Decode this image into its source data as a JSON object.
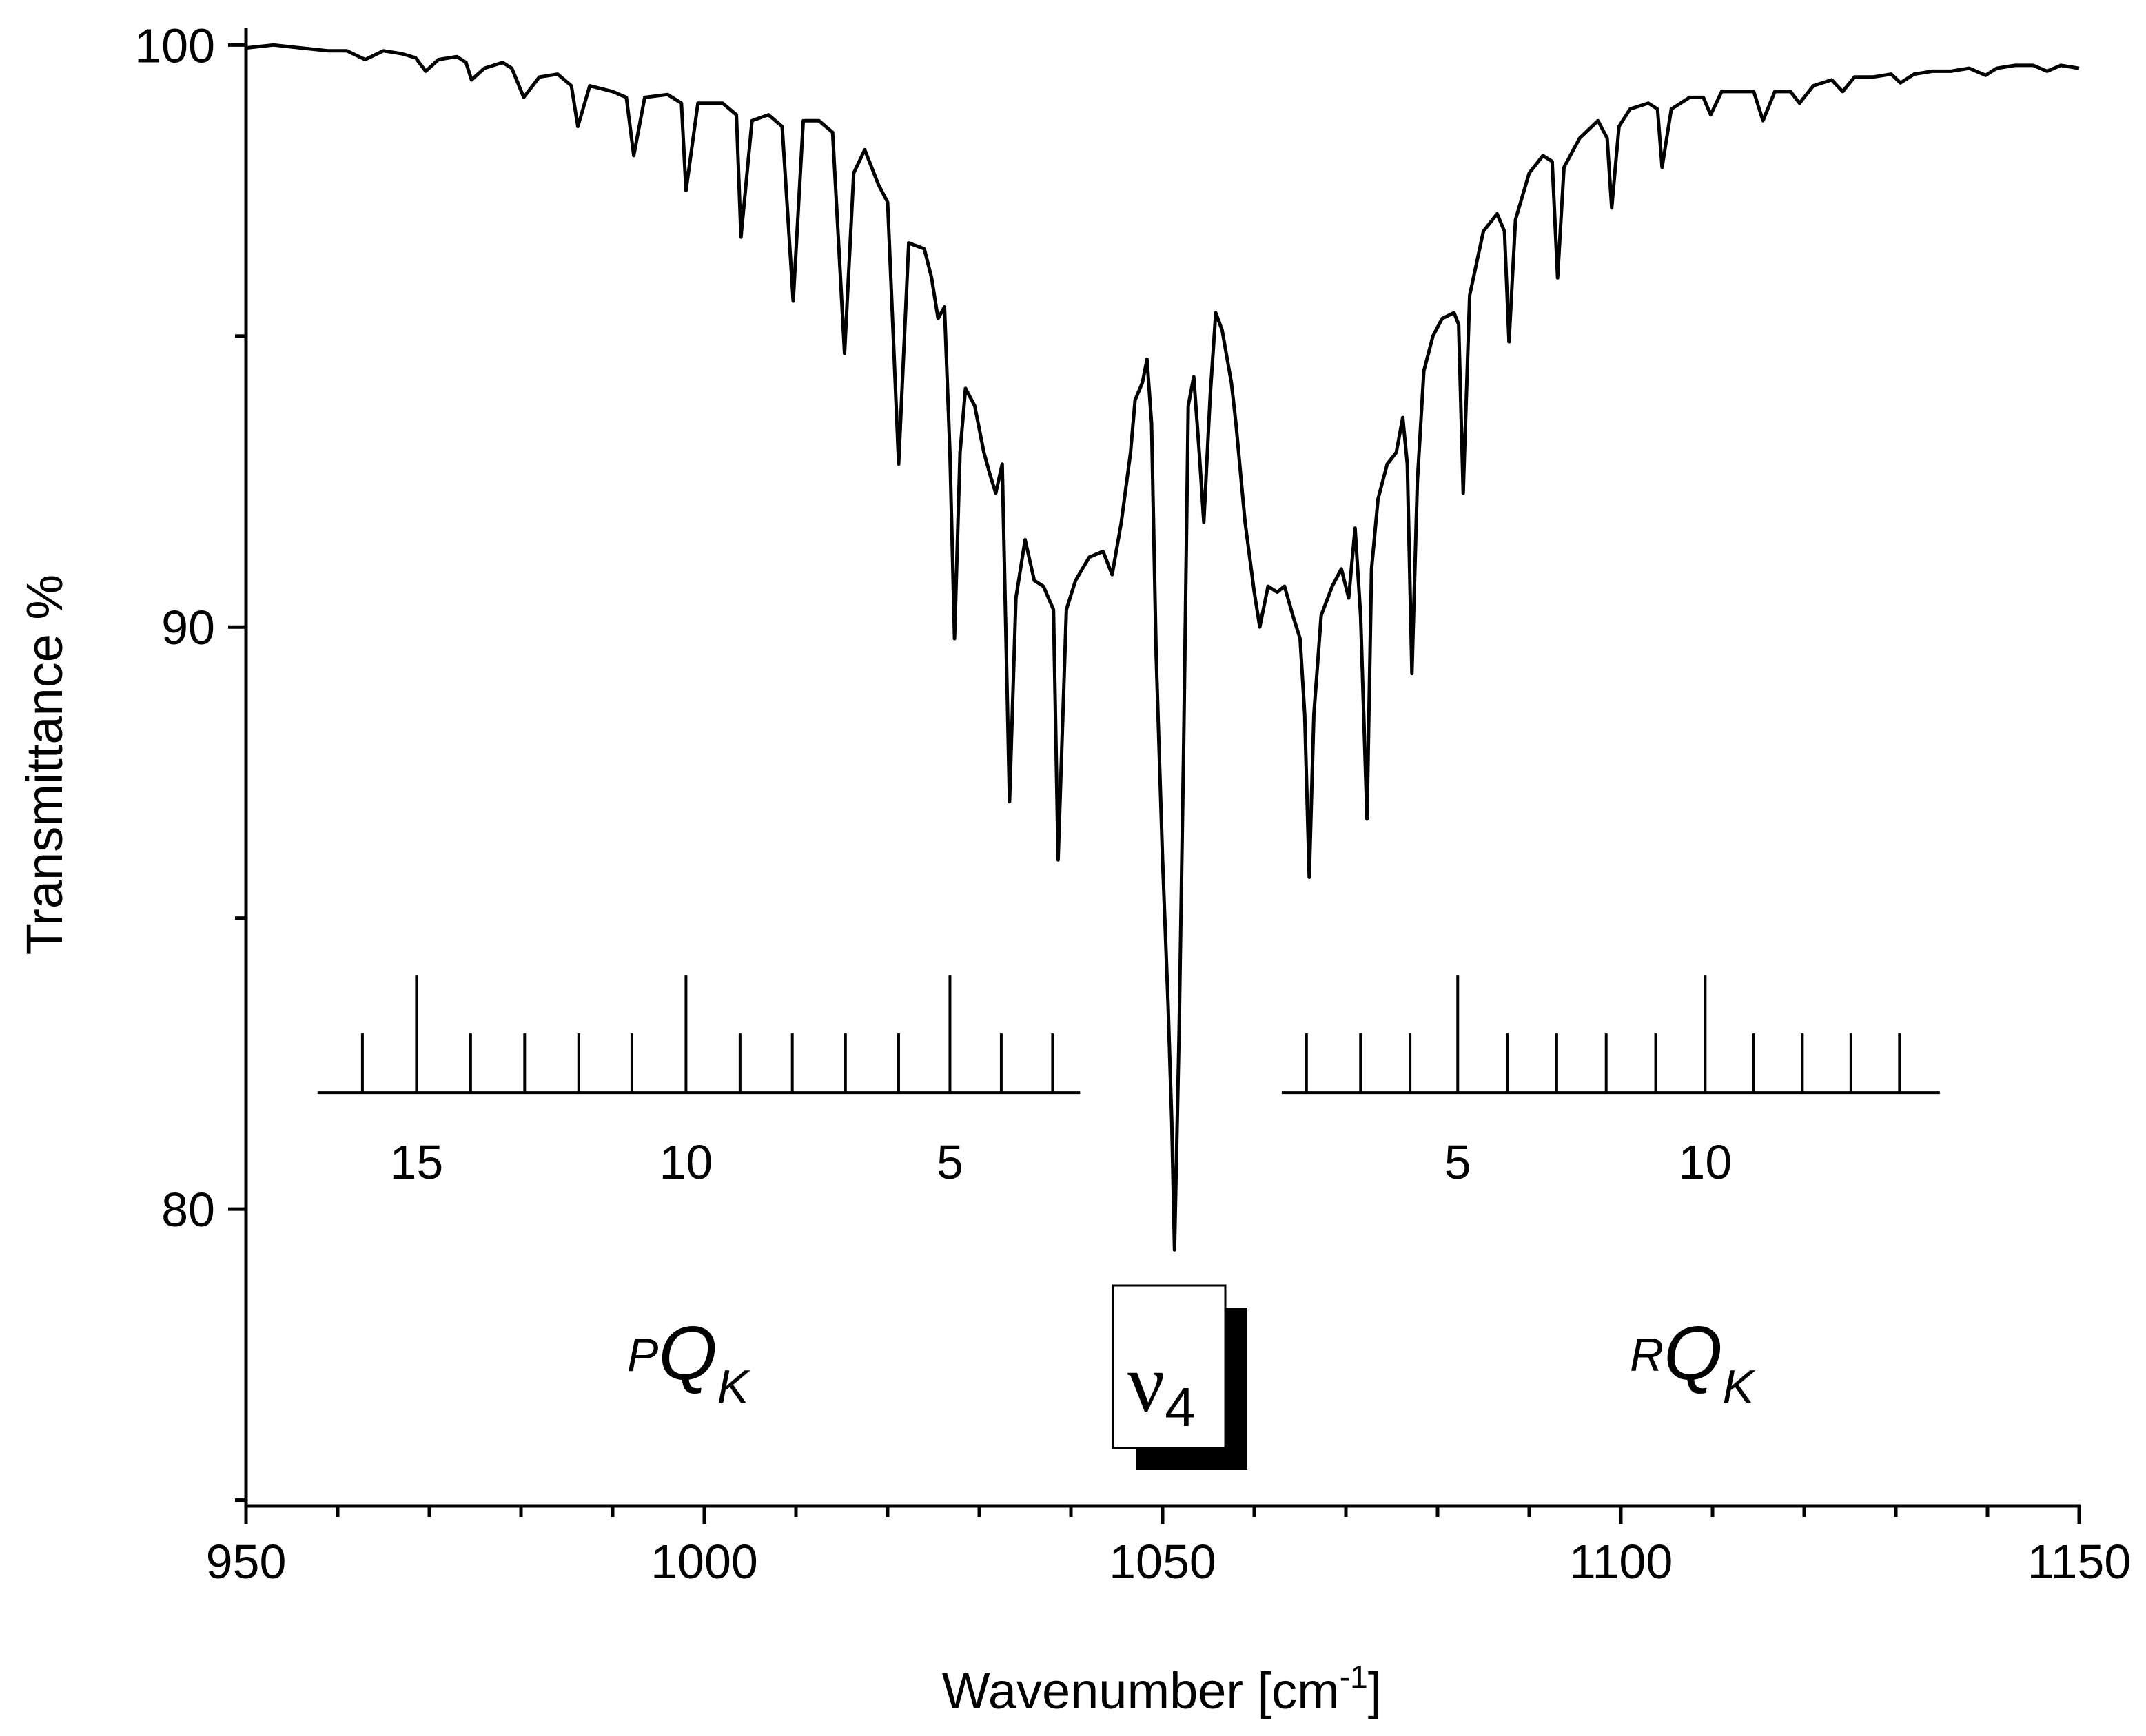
{
  "chart_data": {
    "type": "line",
    "xlabel_main": "Wavenumber [cm",
    "xlabel_sup": "-1",
    "xlabel_end": "]",
    "ylabel": "Transmittance %",
    "xlim": [
      950,
      1150
    ],
    "ylim": [
      74.9,
      100.3
    ],
    "x_ticks": [
      "950",
      "1000",
      "1050",
      "1100",
      "1150"
    ],
    "y_ticks": [
      "80",
      "90",
      "100"
    ],
    "series": [
      {
        "name": "Transmittance",
        "points": [
          [
            950,
            99.95
          ],
          [
            953,
            100.0
          ],
          [
            956,
            99.95
          ],
          [
            959,
            99.9
          ],
          [
            961,
            99.9
          ],
          [
            963,
            99.75
          ],
          [
            965,
            99.9
          ],
          [
            967,
            99.85
          ],
          [
            968.5,
            99.78
          ],
          [
            969.6,
            99.55
          ],
          [
            971,
            99.75
          ],
          [
            973,
            99.8
          ],
          [
            974,
            99.7
          ],
          [
            974.6,
            99.4
          ],
          [
            976,
            99.6
          ],
          [
            978,
            99.7
          ],
          [
            979,
            99.6
          ],
          [
            980.3,
            99.1
          ],
          [
            982,
            99.45
          ],
          [
            984,
            99.5
          ],
          [
            985.5,
            99.3
          ],
          [
            986.2,
            98.6
          ],
          [
            987.5,
            99.3
          ],
          [
            990,
            99.2
          ],
          [
            991.5,
            99.1
          ],
          [
            992.3,
            98.1
          ],
          [
            993.5,
            99.1
          ],
          [
            996,
            99.15
          ],
          [
            997.5,
            99.0
          ],
          [
            998,
            97.5
          ],
          [
            999.3,
            99.0
          ],
          [
            1002,
            99.0
          ],
          [
            1003.5,
            98.8
          ],
          [
            1004,
            96.7
          ],
          [
            1005.2,
            98.7
          ],
          [
            1007,
            98.8
          ],
          [
            1008.5,
            98.6
          ],
          [
            1009.7,
            95.6
          ],
          [
            1010.8,
            98.7
          ],
          [
            1012.5,
            98.7
          ],
          [
            1014,
            98.5
          ],
          [
            1015.3,
            94.7
          ],
          [
            1016.3,
            97.8
          ],
          [
            1017.5,
            98.2
          ],
          [
            1019,
            97.6
          ],
          [
            1020,
            97.3
          ],
          [
            1021.2,
            92.8
          ],
          [
            1022.3,
            96.6
          ],
          [
            1024,
            96.5
          ],
          [
            1024.8,
            96.0
          ],
          [
            1025.5,
            95.3
          ],
          [
            1026.2,
            95.5
          ],
          [
            1026.8,
            93.0
          ],
          [
            1027.3,
            89.8
          ],
          [
            1027.9,
            93.0
          ],
          [
            1028.5,
            94.1
          ],
          [
            1029.5,
            93.8
          ],
          [
            1030.5,
            93.0
          ],
          [
            1031.2,
            92.6
          ],
          [
            1031.8,
            92.3
          ],
          [
            1032.5,
            92.8
          ],
          [
            1033.3,
            87.0
          ],
          [
            1034,
            90.5
          ],
          [
            1035,
            91.5
          ],
          [
            1036,
            90.8
          ],
          [
            1037,
            90.7
          ],
          [
            1038.1,
            90.3
          ],
          [
            1038.6,
            86.0
          ],
          [
            1039.5,
            90.3
          ],
          [
            1040.5,
            90.8
          ],
          [
            1042,
            91.2
          ],
          [
            1043.5,
            91.3
          ],
          [
            1044.5,
            90.9
          ],
          [
            1045.5,
            91.8
          ],
          [
            1046.5,
            93.0
          ],
          [
            1047,
            93.9
          ],
          [
            1047.8,
            94.2
          ],
          [
            1048.3,
            94.6
          ],
          [
            1048.8,
            93.5
          ],
          [
            1049.3,
            89.5
          ],
          [
            1050,
            86.0
          ],
          [
            1050.6,
            83.5
          ],
          [
            1051,
            81.5
          ],
          [
            1051.3,
            79.3
          ],
          [
            1051.8,
            83.0
          ],
          [
            1052.3,
            88.0
          ],
          [
            1052.8,
            93.8
          ],
          [
            1053.4,
            94.3
          ],
          [
            1054,
            93.0
          ],
          [
            1054.5,
            91.8
          ],
          [
            1055.2,
            94.0
          ],
          [
            1055.8,
            95.4
          ],
          [
            1056.5,
            95.1
          ],
          [
            1057.5,
            94.2
          ],
          [
            1058,
            93.5
          ],
          [
            1059,
            91.8
          ],
          [
            1060,
            90.6
          ],
          [
            1060.6,
            90.0
          ],
          [
            1061.5,
            90.7
          ],
          [
            1062.5,
            90.6
          ],
          [
            1063.3,
            90.7
          ],
          [
            1064.2,
            90.2
          ],
          [
            1065,
            89.8
          ],
          [
            1065.5,
            88.5
          ],
          [
            1066,
            85.7
          ],
          [
            1066.5,
            88.5
          ],
          [
            1067.3,
            90.2
          ],
          [
            1068.5,
            90.7
          ],
          [
            1069.5,
            91.0
          ],
          [
            1070.3,
            90.5
          ],
          [
            1071,
            91.7
          ],
          [
            1071.6,
            90.2
          ],
          [
            1072.3,
            86.7
          ],
          [
            1072.8,
            91.0
          ],
          [
            1073.5,
            92.2
          ],
          [
            1074.5,
            92.8
          ],
          [
            1075.5,
            93.0
          ],
          [
            1076.2,
            93.6
          ],
          [
            1076.7,
            92.8
          ],
          [
            1077.2,
            89.2
          ],
          [
            1077.8,
            92.5
          ],
          [
            1078.5,
            94.4
          ],
          [
            1079.5,
            95.0
          ],
          [
            1080.5,
            95.3
          ],
          [
            1081.8,
            95.4
          ],
          [
            1082.3,
            95.2
          ],
          [
            1082.8,
            92.3
          ],
          [
            1083.5,
            95.7
          ],
          [
            1085,
            96.8
          ],
          [
            1086.5,
            97.1
          ],
          [
            1087.3,
            96.8
          ],
          [
            1087.8,
            94.9
          ],
          [
            1088.5,
            97.0
          ],
          [
            1090,
            97.8
          ],
          [
            1091.5,
            98.1
          ],
          [
            1092.5,
            98.0
          ],
          [
            1093.1,
            96.0
          ],
          [
            1093.8,
            97.9
          ],
          [
            1095.5,
            98.4
          ],
          [
            1097.5,
            98.7
          ],
          [
            1098.5,
            98.4
          ],
          [
            1099,
            97.2
          ],
          [
            1099.8,
            98.6
          ],
          [
            1101,
            98.9
          ],
          [
            1103,
            99.0
          ],
          [
            1104,
            98.9
          ],
          [
            1104.5,
            97.9
          ],
          [
            1105.5,
            98.9
          ],
          [
            1107.5,
            99.1
          ],
          [
            1109,
            99.1
          ],
          [
            1109.8,
            98.8
          ],
          [
            1111,
            99.2
          ],
          [
            1113,
            99.2
          ],
          [
            1114.5,
            99.2
          ],
          [
            1115.5,
            98.7
          ],
          [
            1116.8,
            99.2
          ],
          [
            1118.5,
            99.2
          ],
          [
            1119.5,
            99.0
          ],
          [
            1121,
            99.3
          ],
          [
            1123,
            99.4
          ],
          [
            1124.2,
            99.2
          ],
          [
            1125.5,
            99.45
          ],
          [
            1127.5,
            99.45
          ],
          [
            1129.5,
            99.5
          ],
          [
            1130.5,
            99.35
          ],
          [
            1132,
            99.5
          ],
          [
            1134,
            99.55
          ],
          [
            1136,
            99.55
          ],
          [
            1138,
            99.6
          ],
          [
            1139.8,
            99.48
          ],
          [
            1141,
            99.6
          ],
          [
            1143,
            99.65
          ],
          [
            1145,
            99.65
          ],
          [
            1146.5,
            99.55
          ],
          [
            1148,
            99.65
          ],
          [
            1150,
            99.6
          ]
        ]
      }
    ],
    "combs": [
      {
        "name": "PQK",
        "x_range": [
          957.8,
          1041
        ],
        "baseline_y": 82,
        "lines": [
          {
            "x": 962.7,
            "major": false
          },
          {
            "x": 968.6,
            "major": true
          },
          {
            "x": 974.5,
            "major": false
          },
          {
            "x": 980.4,
            "major": false
          },
          {
            "x": 986.3,
            "major": false
          },
          {
            "x": 992.1,
            "major": false
          },
          {
            "x": 998.0,
            "major": true
          },
          {
            "x": 1003.9,
            "major": false
          },
          {
            "x": 1009.6,
            "major": false
          },
          {
            "x": 1015.4,
            "major": false
          },
          {
            "x": 1021.2,
            "major": false
          },
          {
            "x": 1026.8,
            "major": true
          },
          {
            "x": 1032.4,
            "major": false
          },
          {
            "x": 1038.0,
            "major": false
          }
        ],
        "labels": [
          {
            "x": 968.6,
            "text": "15"
          },
          {
            "x": 998.0,
            "text": "10"
          },
          {
            "x": 1026.8,
            "text": "5"
          }
        ]
      },
      {
        "name": "RQK",
        "x_range": [
          1063.0,
          1134.8
        ],
        "baseline_y": 82,
        "lines": [
          {
            "x": 1065.7,
            "major": false
          },
          {
            "x": 1071.6,
            "major": false
          },
          {
            "x": 1077.0,
            "major": false
          },
          {
            "x": 1082.2,
            "major": true
          },
          {
            "x": 1087.6,
            "major": false
          },
          {
            "x": 1093.0,
            "major": false
          },
          {
            "x": 1098.4,
            "major": false
          },
          {
            "x": 1103.8,
            "major": false
          },
          {
            "x": 1109.2,
            "major": true
          },
          {
            "x": 1114.5,
            "major": false
          },
          {
            "x": 1119.8,
            "major": false
          },
          {
            "x": 1125.1,
            "major": false
          },
          {
            "x": 1130.4,
            "major": false
          }
        ],
        "labels": [
          {
            "x": 1082.2,
            "text": "5"
          },
          {
            "x": 1109.2,
            "text": "10"
          }
        ]
      }
    ],
    "annotations": {
      "left_branch": {
        "sup": "P",
        "main": "Q",
        "sub": "K"
      },
      "right_branch": {
        "sup": "R",
        "main": "Q",
        "sub": "K"
      },
      "band": {
        "symbol": "ν",
        "sub": "4"
      }
    }
  }
}
